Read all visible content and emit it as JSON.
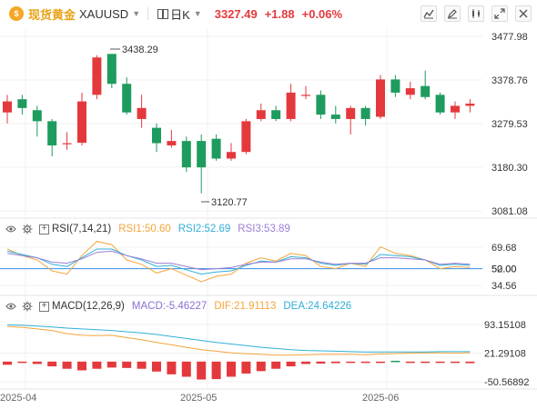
{
  "toolbar": {
    "logo_icon": "gold-coin-icon",
    "name": "现货黄金",
    "code": "XAUUSD",
    "period": "日K",
    "price": "3327.49",
    "change": "+1.88",
    "change_pct": "+0.06%",
    "buttons": [
      "draw-tool-icon",
      "edit-icon",
      "indicator-icon",
      "expand-icon",
      "close-icon"
    ]
  },
  "price_axis": [
    "3477.98",
    "3378.76",
    "3279.53",
    "3180.30",
    "3081.08"
  ],
  "annotations": {
    "high": "3438.29",
    "low": "3120.77"
  },
  "rsi": {
    "label": "RSI(7,14,21)",
    "rsi1": "RSI1:50.60",
    "rsi2": "RSI2:52.69",
    "rsi3": "RSI3:53.89",
    "axis": [
      "69.68",
      "50.00",
      "52.00",
      "34.56"
    ]
  },
  "macd": {
    "label": "MACD(12,26,9)",
    "macd": "MACD:-5.46227",
    "dif": "DIF:21.91113",
    "dea": "DEA:24.64226",
    "axis": [
      "93.15108",
      "21.29108",
      "-50.56892"
    ]
  },
  "dates": [
    "2025-04",
    "2025-05",
    "2025-06"
  ],
  "colors": {
    "up": "#e4393c",
    "down": "#1e9b5e",
    "rsi1": "#f4a53b",
    "rsi2": "#2fb0d6",
    "rsi3": "#9b7fd4"
  },
  "chart_data": {
    "type": "candlestick",
    "candles": [
      {
        "o": 3305,
        "c": 3330,
        "h": 3345,
        "l": 3280
      },
      {
        "o": 3335,
        "c": 3315,
        "h": 3345,
        "l": 3300
      },
      {
        "o": 3310,
        "c": 3285,
        "h": 3320,
        "l": 3250
      },
      {
        "o": 3285,
        "c": 3230,
        "h": 3290,
        "l": 3205
      },
      {
        "o": 3235,
        "c": 3235,
        "h": 3260,
        "l": 3220
      },
      {
        "o": 3236,
        "c": 3330,
        "h": 3350,
        "l": 3230
      },
      {
        "o": 3345,
        "c": 3430,
        "h": 3435,
        "l": 3335
      },
      {
        "o": 3438,
        "c": 3370,
        "h": 3438,
        "l": 3360
      },
      {
        "o": 3370,
        "c": 3305,
        "h": 3385,
        "l": 3300
      },
      {
        "o": 3290,
        "c": 3315,
        "h": 3345,
        "l": 3270
      },
      {
        "o": 3270,
        "c": 3235,
        "h": 3280,
        "l": 3215
      },
      {
        "o": 3230,
        "c": 3240,
        "h": 3265,
        "l": 3225
      },
      {
        "o": 3240,
        "c": 3180,
        "h": 3250,
        "l": 3170
      },
      {
        "o": 3240,
        "c": 3180,
        "h": 3255,
        "l": 3121
      },
      {
        "o": 3245,
        "c": 3200,
        "h": 3255,
        "l": 3195
      },
      {
        "o": 3200,
        "c": 3215,
        "h": 3235,
        "l": 3195
      },
      {
        "o": 3215,
        "c": 3285,
        "h": 3290,
        "l": 3210
      },
      {
        "o": 3290,
        "c": 3310,
        "h": 3325,
        "l": 3285
      },
      {
        "o": 3310,
        "c": 3290,
        "h": 3320,
        "l": 3285
      },
      {
        "o": 3290,
        "c": 3350,
        "h": 3370,
        "l": 3285
      },
      {
        "o": 3345,
        "c": 3345,
        "h": 3365,
        "l": 3335
      },
      {
        "o": 3345,
        "c": 3300,
        "h": 3355,
        "l": 3290
      },
      {
        "o": 3300,
        "c": 3290,
        "h": 3320,
        "l": 3280
      },
      {
        "o": 3290,
        "c": 3315,
        "h": 3320,
        "l": 3255
      },
      {
        "o": 3315,
        "c": 3290,
        "h": 3320,
        "l": 3275
      },
      {
        "o": 3295,
        "c": 3380,
        "h": 3390,
        "l": 3290
      },
      {
        "o": 3380,
        "c": 3350,
        "h": 3390,
        "l": 3340
      },
      {
        "o": 3345,
        "c": 3360,
        "h": 3375,
        "l": 3335
      },
      {
        "o": 3365,
        "c": 3340,
        "h": 3400,
        "l": 3335
      },
      {
        "o": 3345,
        "c": 3305,
        "h": 3350,
        "l": 3300
      },
      {
        "o": 3305,
        "c": 3320,
        "h": 3330,
        "l": 3290
      },
      {
        "o": 3320,
        "c": 3325,
        "h": 3335,
        "l": 3305
      }
    ]
  }
}
